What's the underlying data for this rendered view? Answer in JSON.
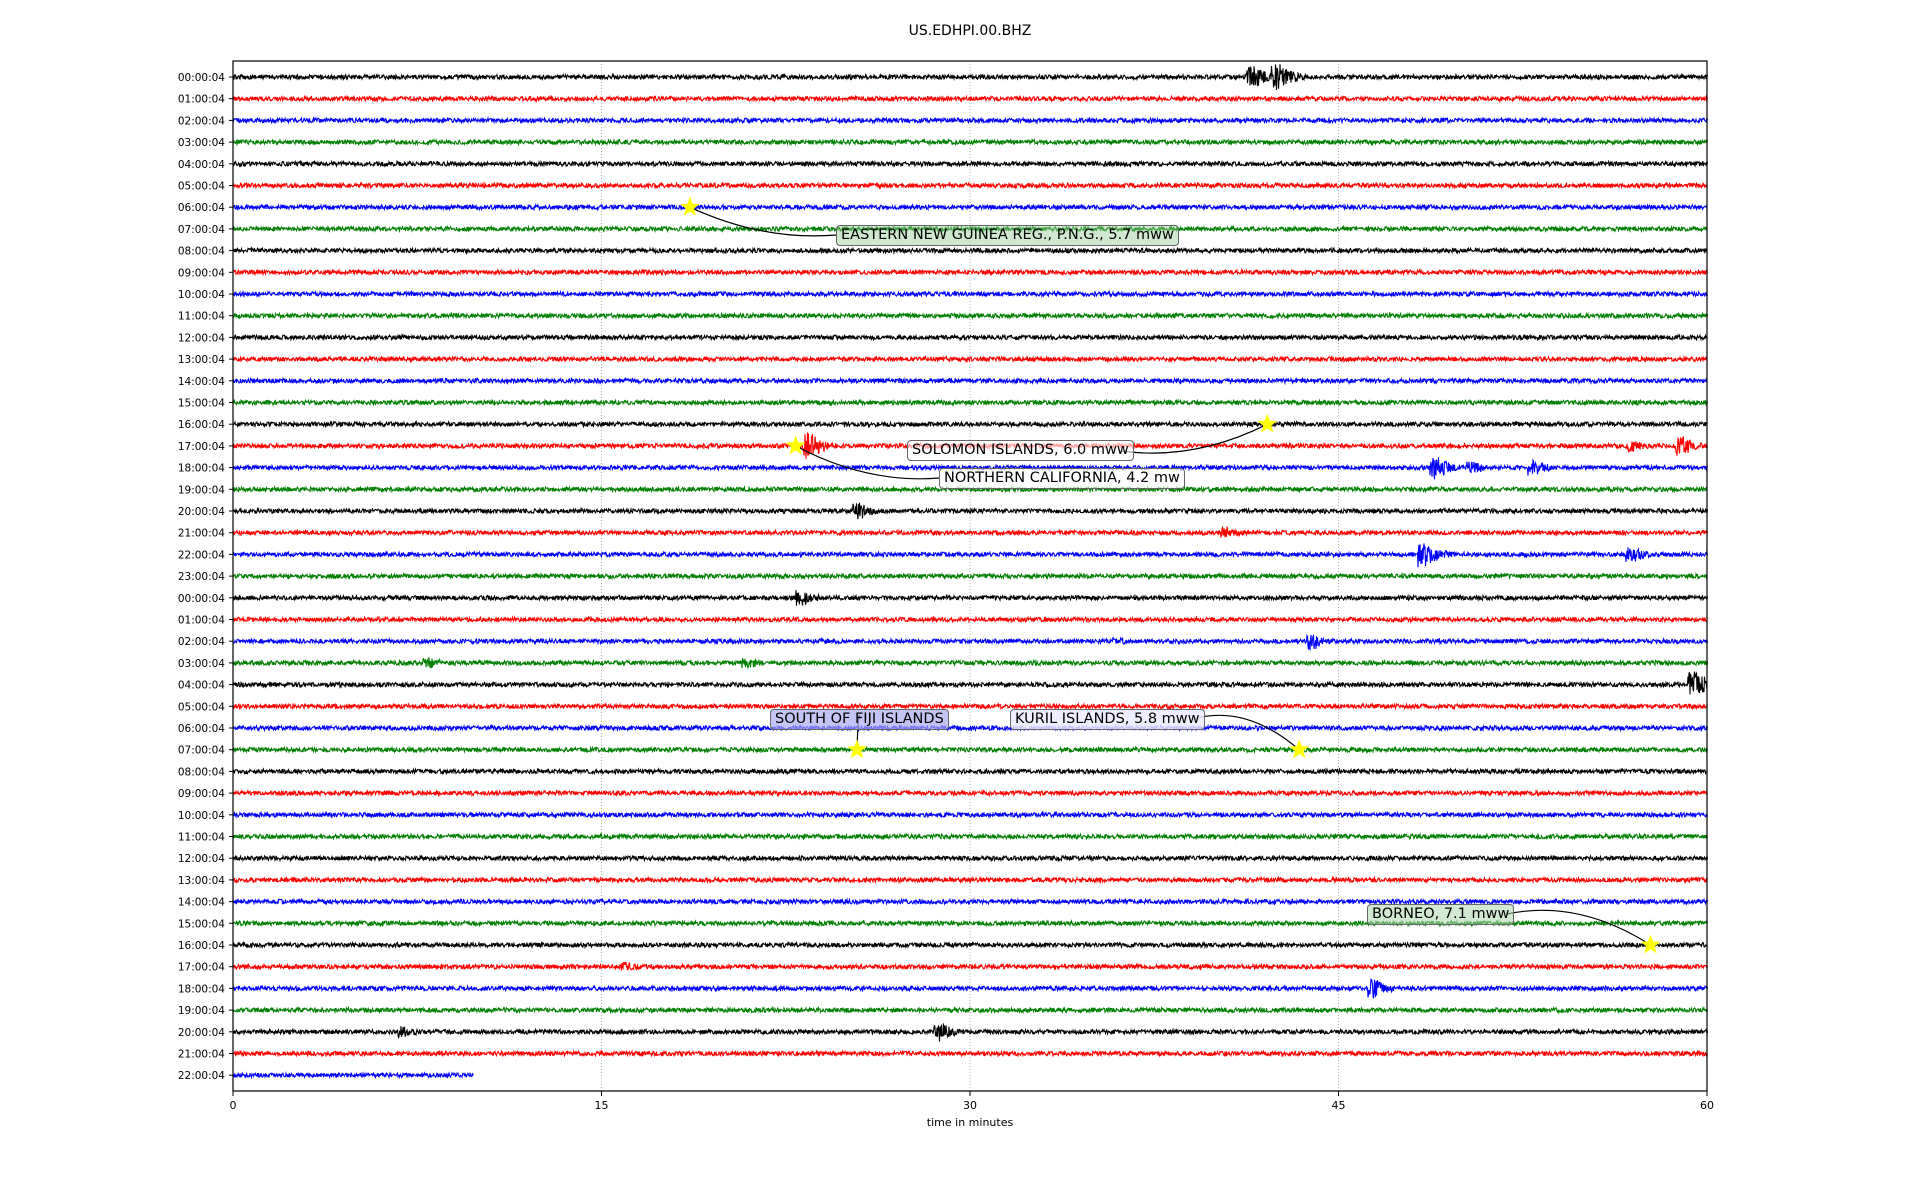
{
  "chart_data": {
    "type": "line",
    "title": "US.EDHPI.00.BHZ",
    "xlabel": "time in minutes",
    "xlim": [
      0,
      60
    ],
    "xticks": [
      "0",
      "15",
      "30",
      "45",
      "60"
    ],
    "grid": "vertical dotted at 15-minute ticks",
    "trace_colors": [
      "#000000",
      "#ff0000",
      "#0000ff",
      "#008000"
    ],
    "row_labels": [
      "00:00:04",
      "01:00:04",
      "02:00:04",
      "03:00:04",
      "04:00:04",
      "05:00:04",
      "06:00:04",
      "07:00:04",
      "08:00:04",
      "09:00:04",
      "10:00:04",
      "11:00:04",
      "12:00:04",
      "13:00:04",
      "14:00:04",
      "15:00:04",
      "16:00:04",
      "17:00:04",
      "18:00:04",
      "19:00:04",
      "20:00:04",
      "21:00:04",
      "22:00:04",
      "23:00:04",
      "00:00:04",
      "01:00:04",
      "02:00:04",
      "03:00:04",
      "04:00:04",
      "05:00:04",
      "06:00:04",
      "07:00:04",
      "08:00:04",
      "09:00:04",
      "10:00:04",
      "11:00:04",
      "12:00:04",
      "13:00:04",
      "14:00:04",
      "15:00:04",
      "16:00:04",
      "17:00:04",
      "18:00:04",
      "19:00:04",
      "20:00:04",
      "21:00:04",
      "22:00:04"
    ],
    "last_row_end_minute": 9.8,
    "events": [
      {
        "label": "EASTERN NEW GUINEA REG., P.N.G., 5.7 mww",
        "row": "06:00:04",
        "minute": 18.6
      },
      {
        "label": "SOLOMON ISLANDS, 6.0 mww",
        "row": "16:00:04",
        "minute": 42.1
      },
      {
        "label": "NORTHERN CALIFORNIA, 4.2 mw",
        "row": "17:00:04",
        "minute": 22.9
      },
      {
        "label": "SOUTH OF FIJI ISLANDS",
        "row": "07:00:04 (day 2)",
        "minute": 25.4
      },
      {
        "label": "KURIL ISLANDS, 5.8 mww",
        "row": "07:00:04 (day 2)",
        "minute": 43.4
      },
      {
        "label": "BORNEO, 7.1 mww",
        "row": "16:00:04 (day 2)",
        "minute": 57.7
      }
    ],
    "marker_color": "#ffff00"
  }
}
